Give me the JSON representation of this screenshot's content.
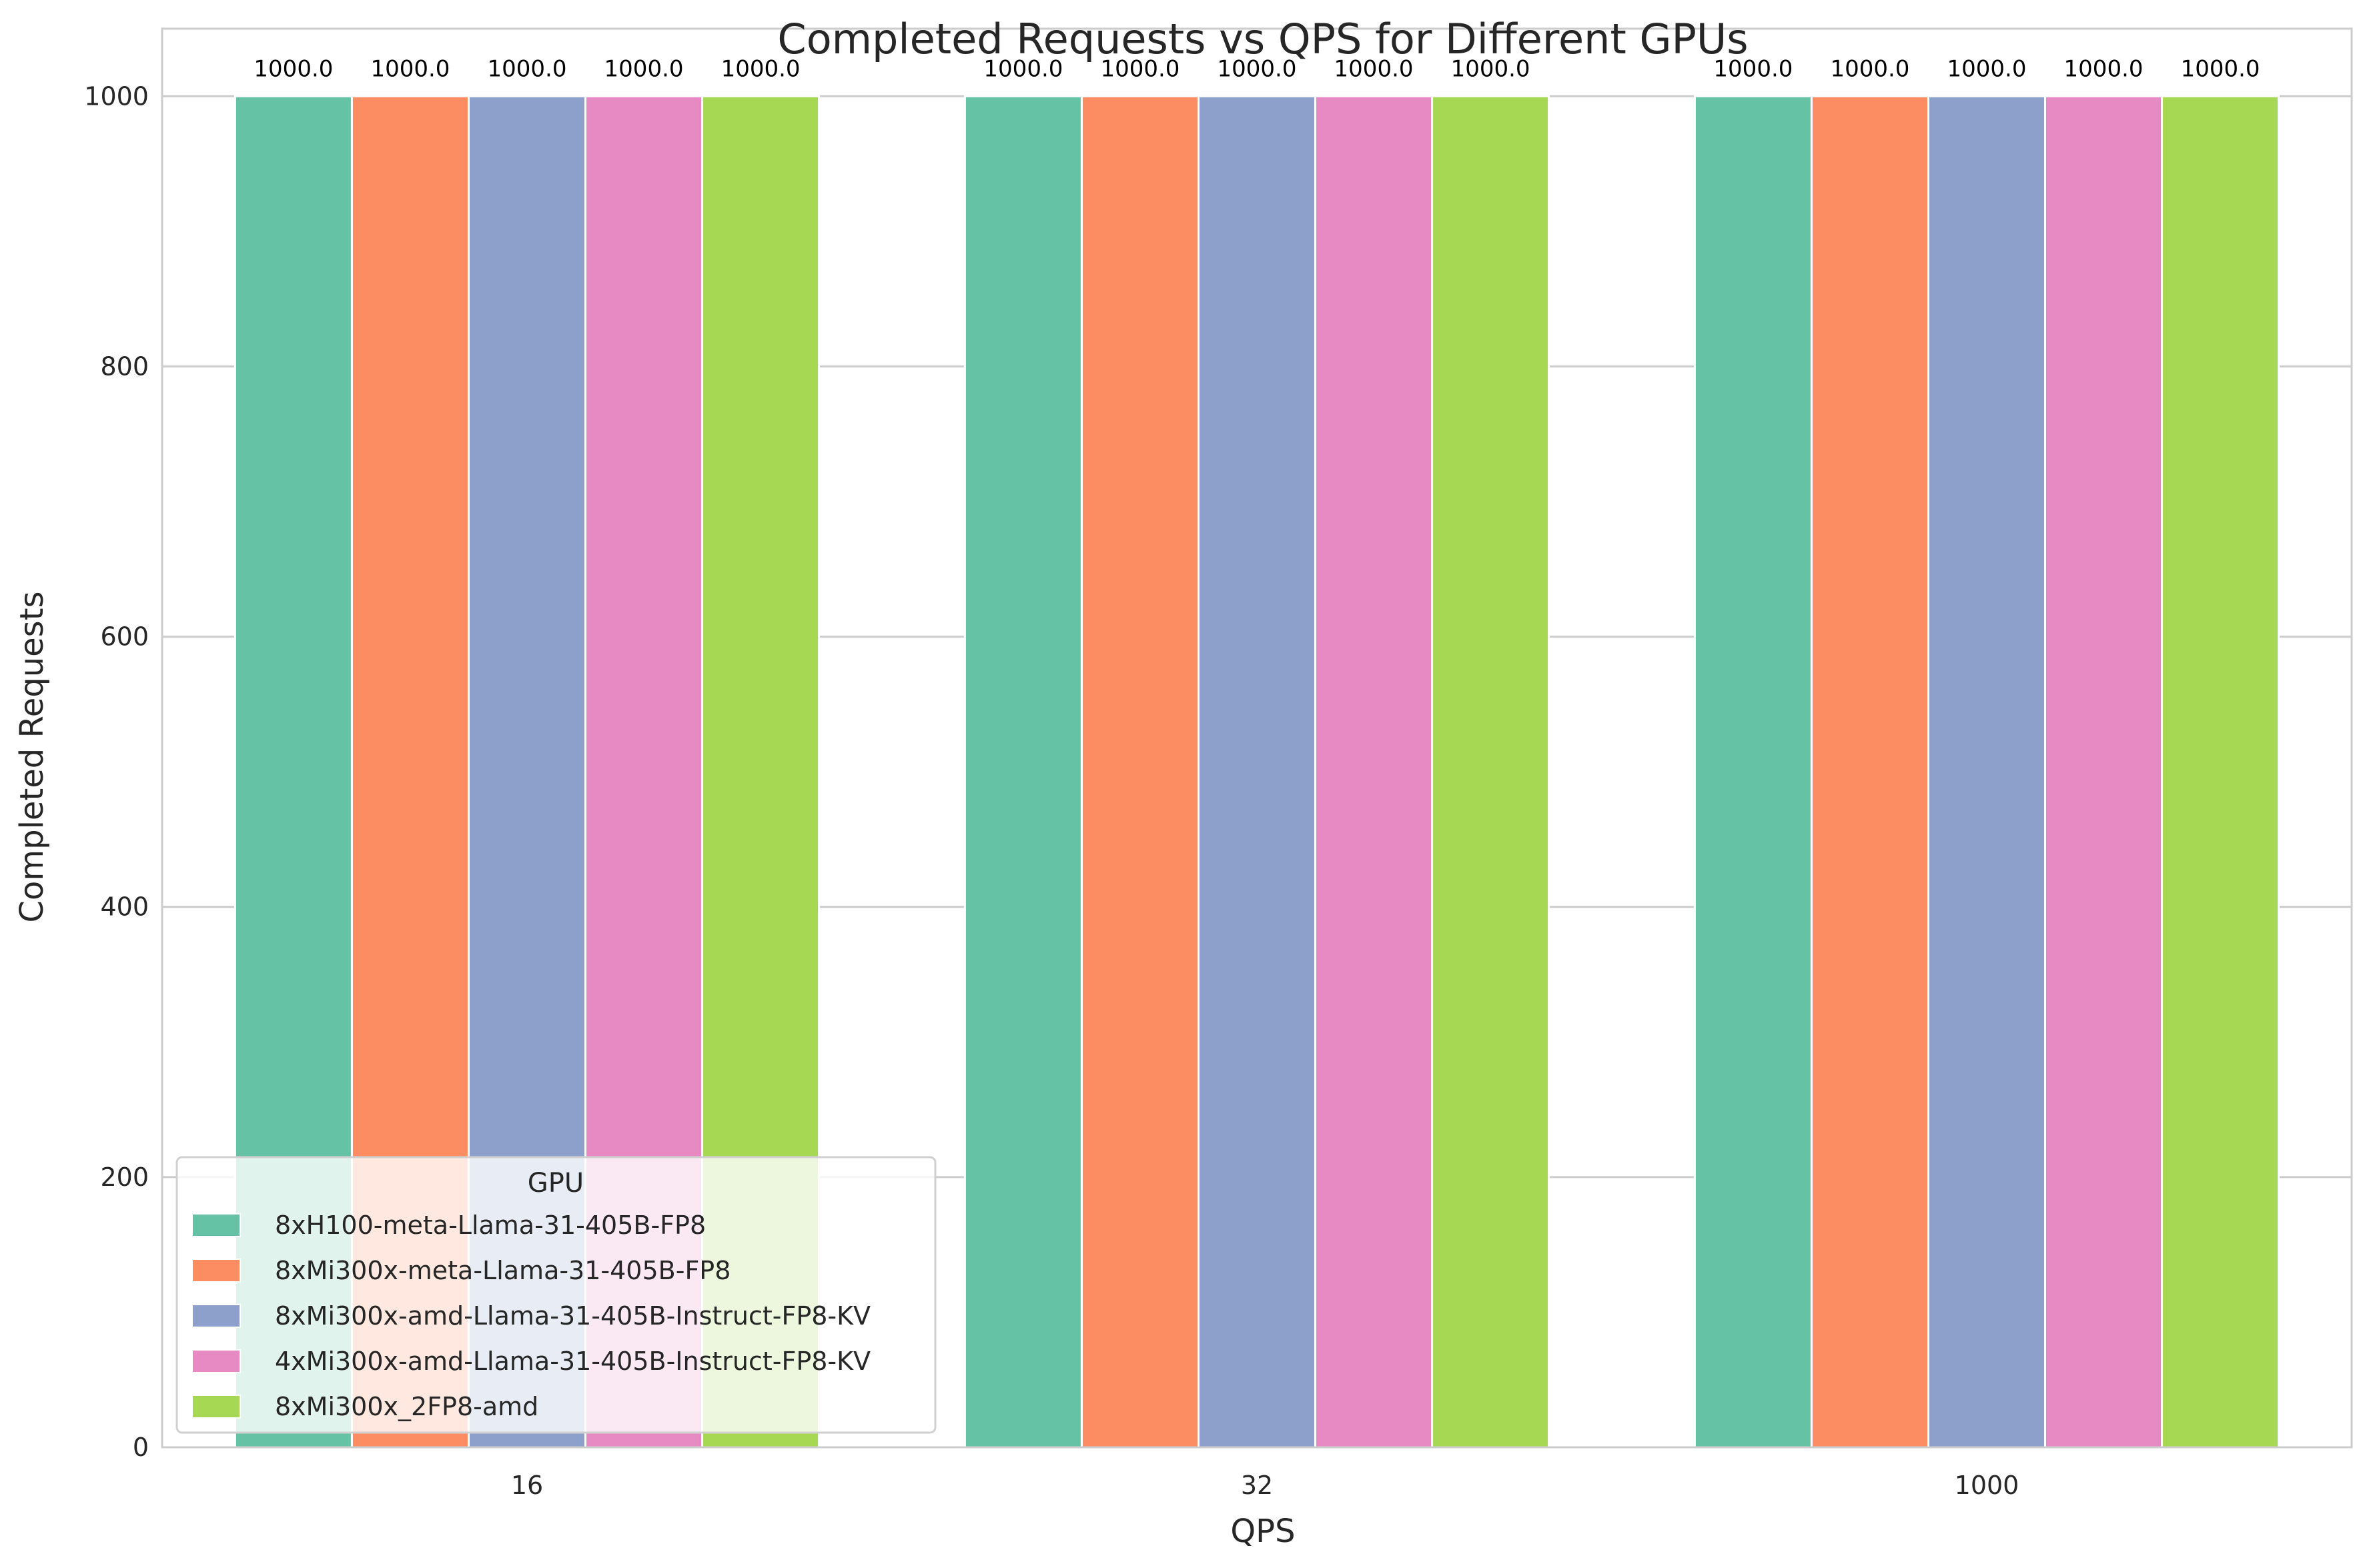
{
  "chart_data": {
    "type": "bar",
    "title": "Completed Requests vs QPS for Different GPUs",
    "xlabel": "QPS",
    "ylabel": "Completed Requests",
    "categories": [
      "16",
      "32",
      "1000"
    ],
    "ylim": [
      0,
      1050
    ],
    "yticks": [
      0,
      200,
      400,
      600,
      800,
      1000
    ],
    "grid": true,
    "legend": {
      "title": "GPU",
      "placement": "lower-left"
    },
    "series": [
      {
        "name": "8xH100-meta-Llama-31-405B-FP8",
        "color": "#66c2a5",
        "values": [
          1000,
          1000,
          1000
        ],
        "labels": [
          "1000.0",
          "1000.0",
          "1000.0"
        ]
      },
      {
        "name": "8xMi300x-meta-Llama-31-405B-FP8",
        "color": "#fc8d62",
        "values": [
          1000,
          1000,
          1000
        ],
        "labels": [
          "1000.0",
          "1000.0",
          "1000.0"
        ]
      },
      {
        "name": "8xMi300x-amd-Llama-31-405B-Instruct-FP8-KV",
        "color": "#8da0cb",
        "values": [
          1000,
          1000,
          1000
        ],
        "labels": [
          "1000.0",
          "1000.0",
          "1000.0"
        ]
      },
      {
        "name": "4xMi300x-amd-Llama-31-405B-Instruct-FP8-KV",
        "color": "#e78ac3",
        "values": [
          1000,
          1000,
          1000
        ],
        "labels": [
          "1000.0",
          "1000.0",
          "1000.0"
        ]
      },
      {
        "name": "8xMi300x_2FP8-amd",
        "color": "#a6d854",
        "values": [
          1000,
          1000,
          1000
        ],
        "labels": [
          "1000.0",
          "1000.0",
          "1000.0"
        ]
      }
    ]
  }
}
